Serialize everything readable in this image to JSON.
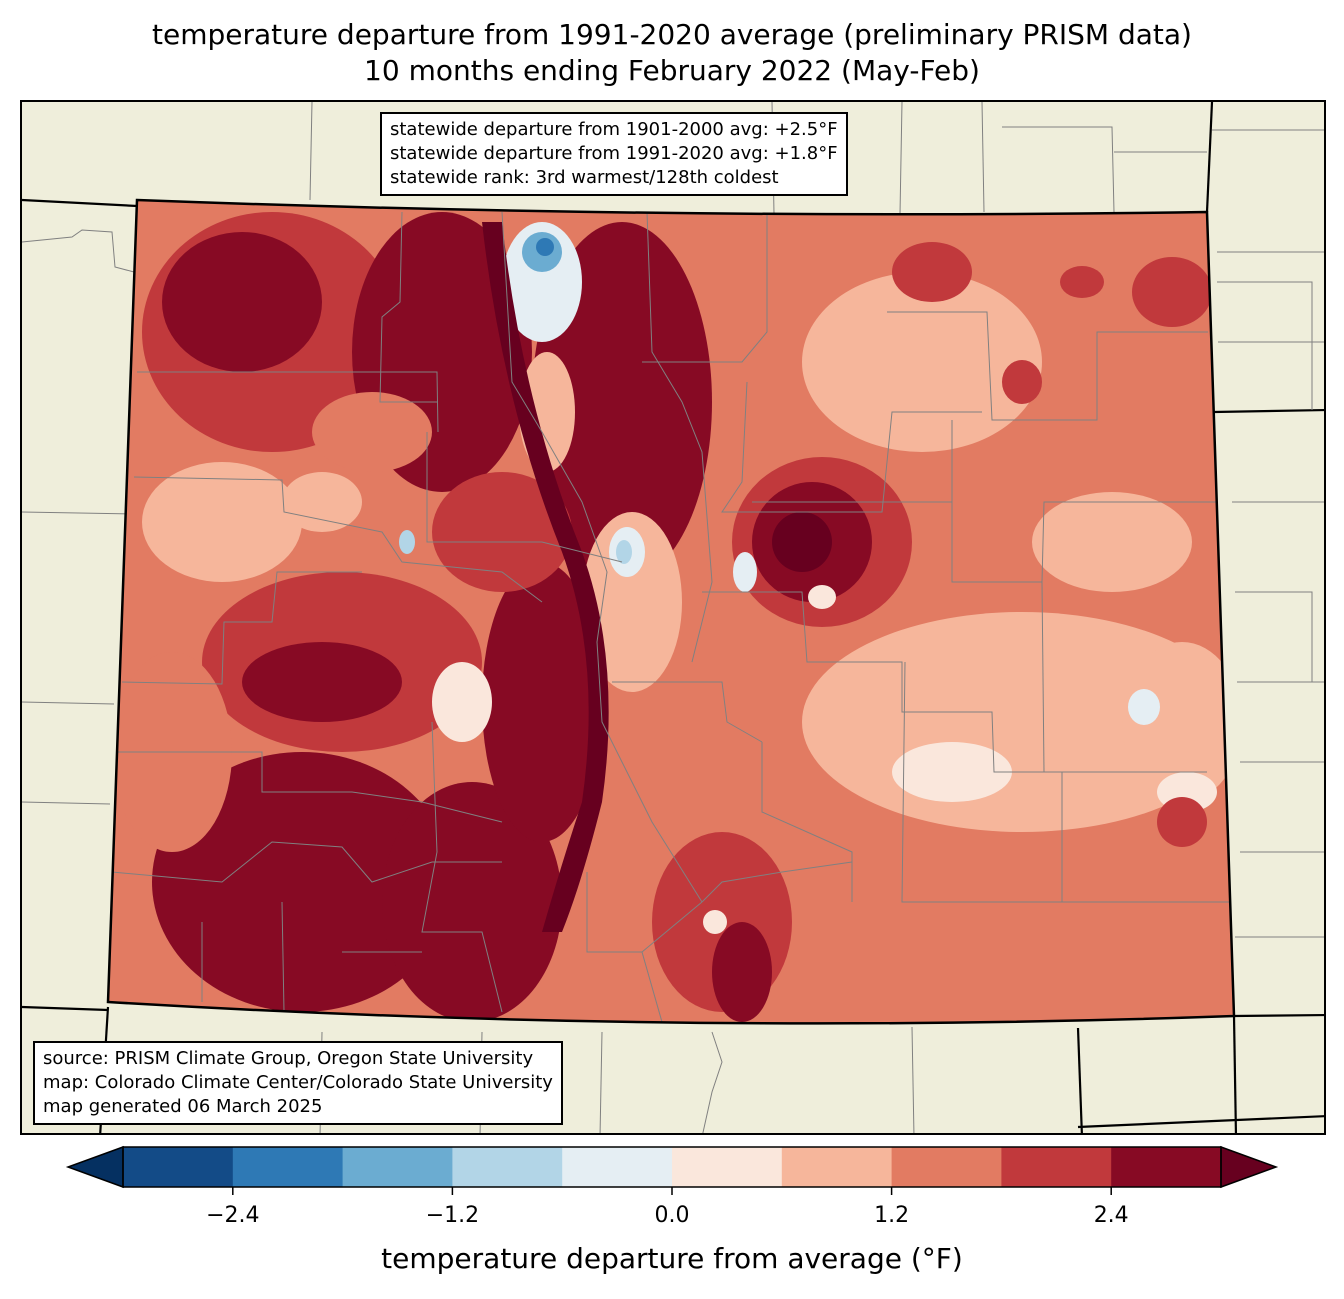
{
  "title_line1": "temperature departure from 1991-2020 average (preliminary PRISM data)",
  "title_line2": "10 months ending February 2022 (May-Feb)",
  "stats": {
    "line1": "statewide departure from 1901-2000 avg: +2.5°F",
    "line2": "statewide departure from 1991-2020 avg: +1.8°F",
    "line3": "statewide rank: 3rd warmest/128th coldest"
  },
  "source": {
    "line1": "source: PRISM Climate Group, Oregon State University",
    "line2": "map: Colorado Climate Center/Colorado State University",
    "line3": "map generated 06 March 2025"
  },
  "colorbar": {
    "label": "temperature departure from average (°F)",
    "boundaries": [
      -3.0,
      -2.4,
      -1.8,
      -1.2,
      -0.6,
      0.0,
      0.6,
      1.2,
      1.8,
      2.4,
      3.0
    ],
    "colors": [
      "#134b87",
      "#2e79b5",
      "#6bacd1",
      "#b2d5e7",
      "#e5eef3",
      "#fae7dc",
      "#f6b69b",
      "#e27b62",
      "#c1393c",
      "#870a24"
    ],
    "under_color": "#053061",
    "over_color": "#67001f",
    "ticks": [
      "−2.4",
      "−1.2",
      "0.0",
      "1.2",
      "2.4"
    ],
    "tick_values": [
      -2.4,
      -1.2,
      0.0,
      1.2,
      2.4
    ]
  },
  "map_colors": {
    "land": "#efeedb",
    "state_border": "#000000",
    "county_border": "#808080"
  }
}
